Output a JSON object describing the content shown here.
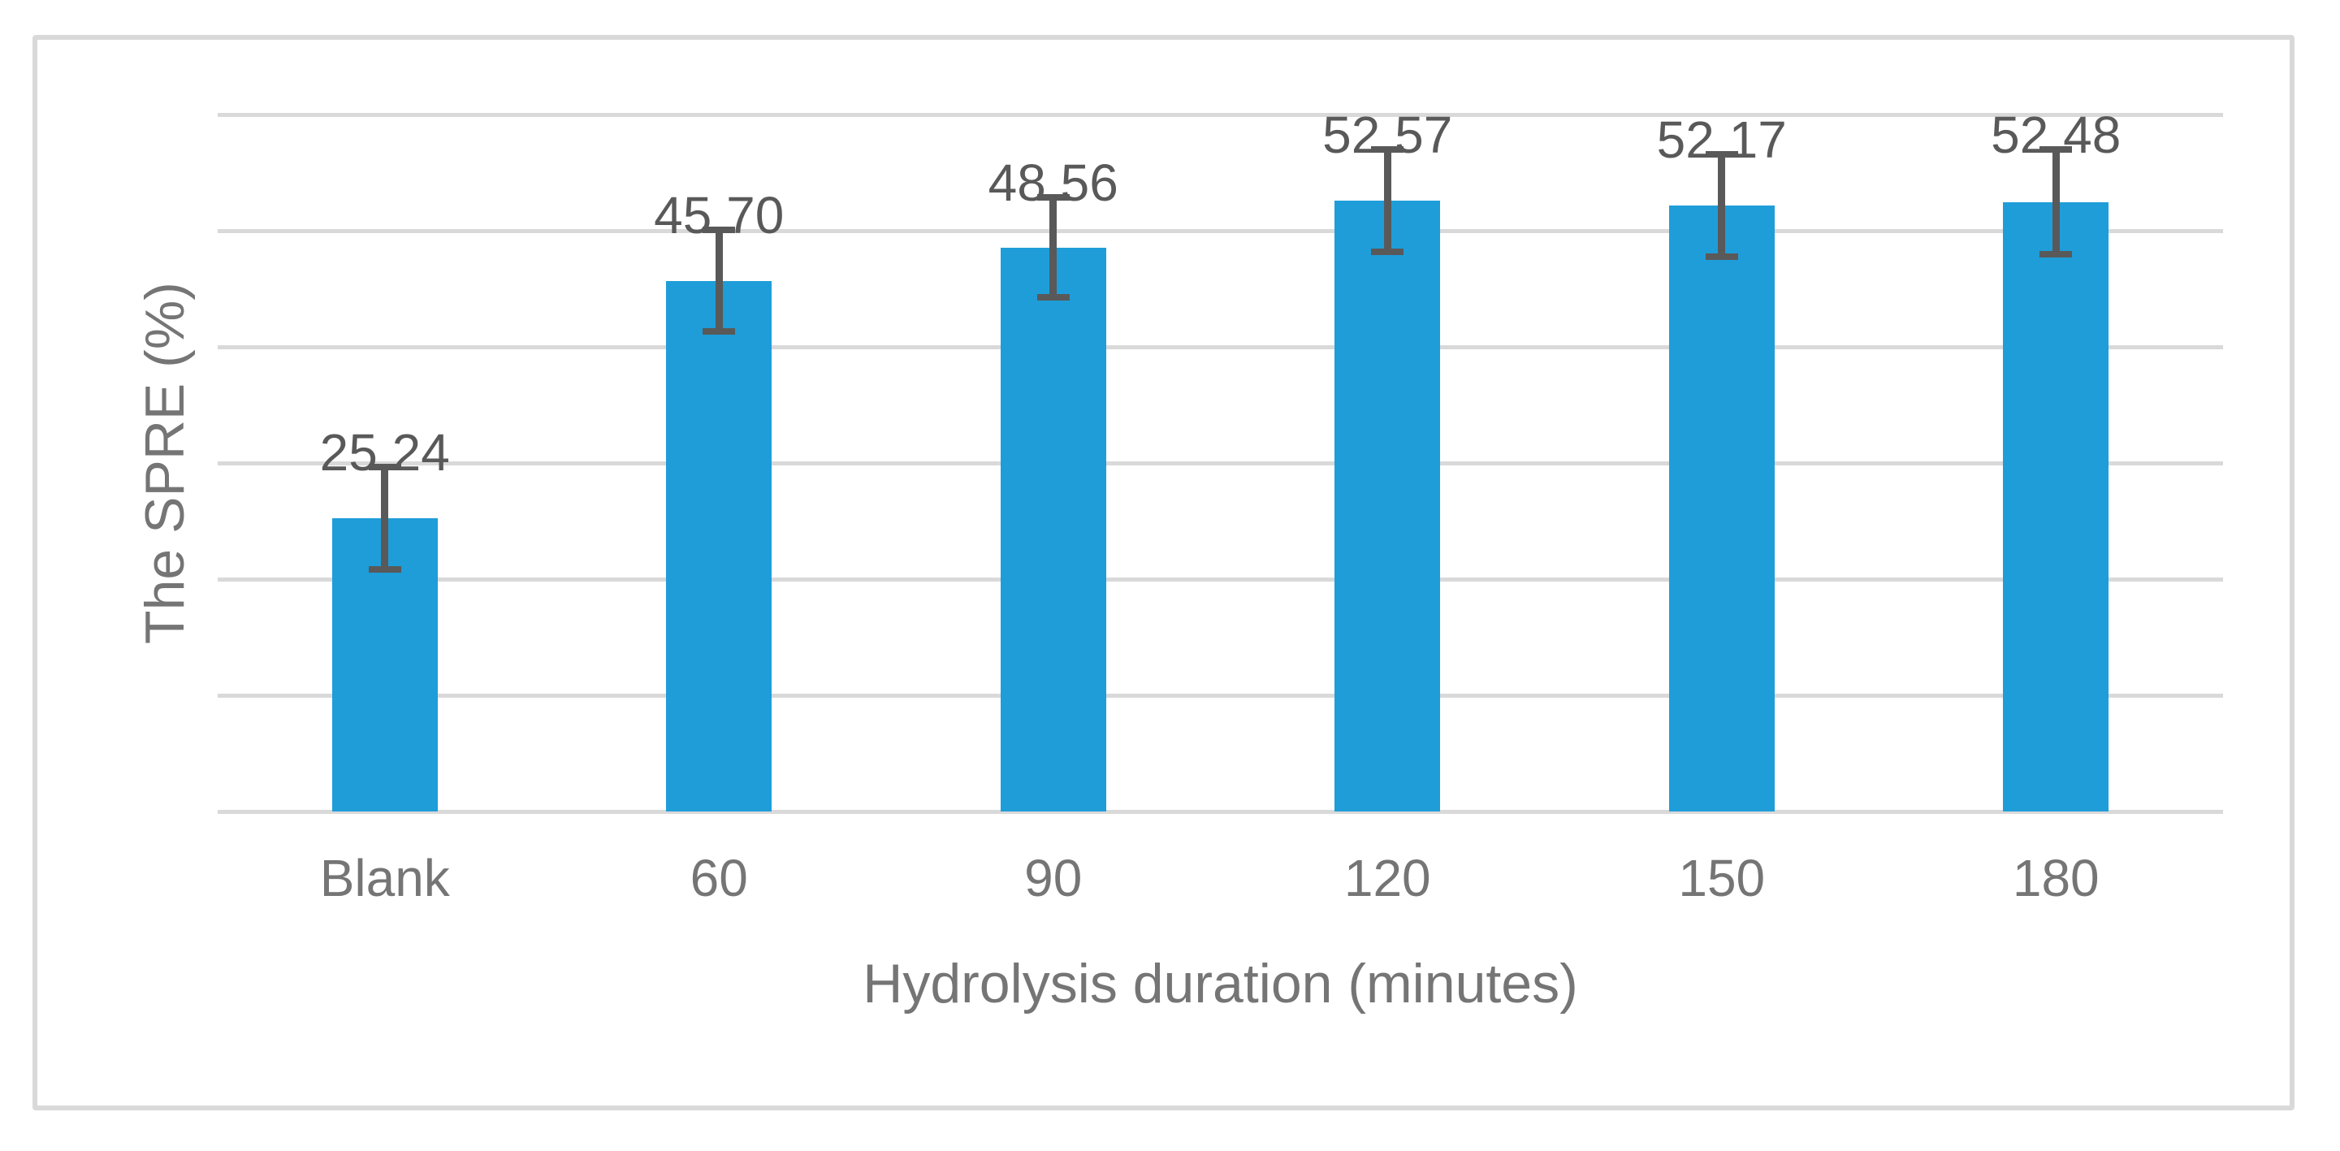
{
  "chart_data": {
    "type": "bar",
    "title": "",
    "categories": [
      "Blank",
      "60",
      "90",
      "120",
      "150",
      "180"
    ],
    "values": [
      25.24,
      45.7,
      48.56,
      52.57,
      52.17,
      52.48
    ],
    "data_labels": [
      "25.24",
      "45.70",
      "48.56",
      "52.57",
      "52.17",
      "52.48"
    ],
    "error_y": [
      4.4,
      4.4,
      4.3,
      4.4,
      4.4,
      4.5
    ],
    "xlabel": "Hydrolysis duration (minutes)",
    "ylabel": "The SPRE (%)",
    "ylim": [
      0,
      60
    ],
    "grid": true,
    "gridline_values": [
      0,
      10,
      20,
      30,
      40,
      50,
      60
    ],
    "y_tick_labels_visible": false,
    "legend": false,
    "colors": {
      "bar_fill": "#1F9DD9",
      "gridline": "#D9D9D9",
      "chart_border": "#D9D9D9",
      "error_bar": "#595959",
      "data_label_text": "#595959",
      "axis_text": "#757575"
    }
  }
}
